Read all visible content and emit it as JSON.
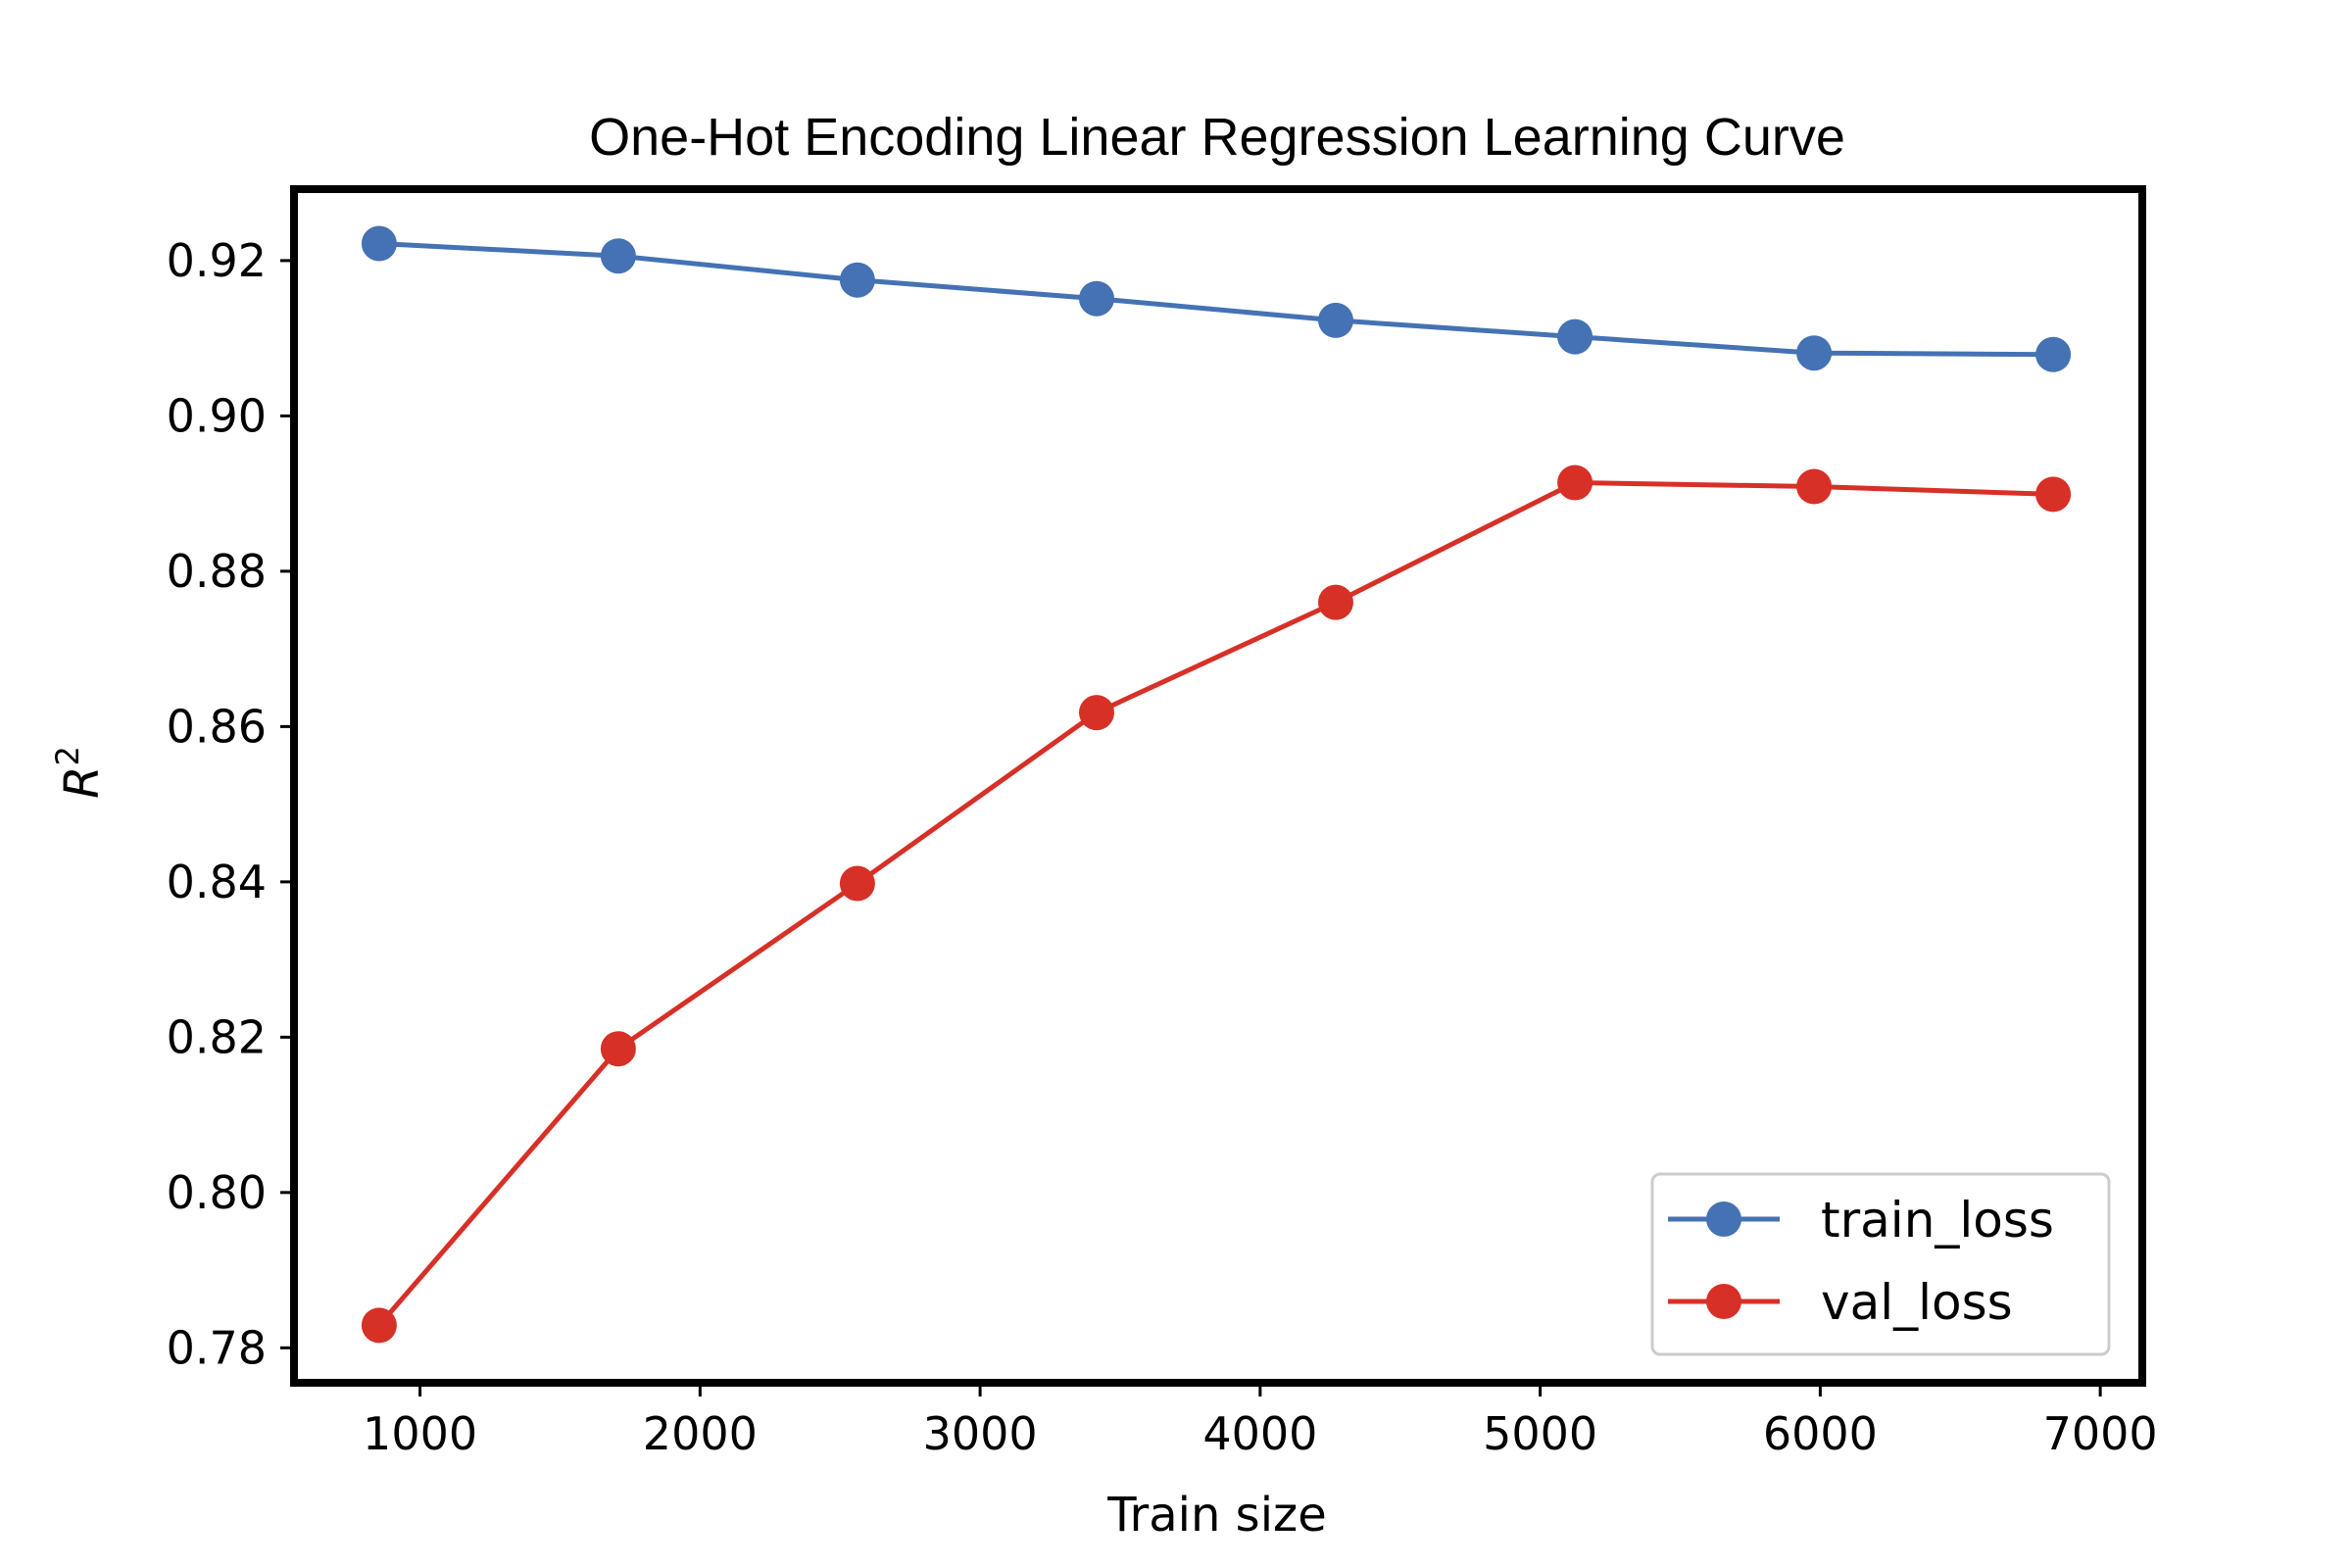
{
  "chart_data": {
    "type": "line",
    "title": "One-Hot Encoding Linear Regression Learning Curve",
    "xlabel": "Train size",
    "ylabel_base": "R",
    "ylabel_sup": "2",
    "xlim": [
      550,
      7150
    ],
    "ylim": [
      0.7755,
      0.9292
    ],
    "xticks": [
      1000,
      2000,
      3000,
      4000,
      5000,
      6000,
      7000
    ],
    "xtick_labels": [
      "1000",
      "2000",
      "3000",
      "4000",
      "5000",
      "6000",
      "7000"
    ],
    "yticks": [
      0.78,
      0.8,
      0.82,
      0.84,
      0.86,
      0.88,
      0.9,
      0.92
    ],
    "ytick_labels": [
      "0.78",
      "0.80",
      "0.82",
      "0.84",
      "0.86",
      "0.88",
      "0.90",
      "0.92"
    ],
    "grid": false,
    "legend_position": "lower-right",
    "x": [
      854,
      1708,
      2562,
      3416,
      4270,
      5124,
      5978,
      6832
    ],
    "series": [
      {
        "name": "train_loss",
        "color": "#4472b4",
        "values": [
          0.9222,
          0.9206,
          0.9175,
          0.9151,
          0.9123,
          0.9102,
          0.9081,
          0.9079
        ]
      },
      {
        "name": "val_loss",
        "color": "#d73027",
        "values": [
          0.7829,
          0.8185,
          0.8398,
          0.8618,
          0.876,
          0.8914,
          0.8909,
          0.8899
        ]
      }
    ]
  }
}
